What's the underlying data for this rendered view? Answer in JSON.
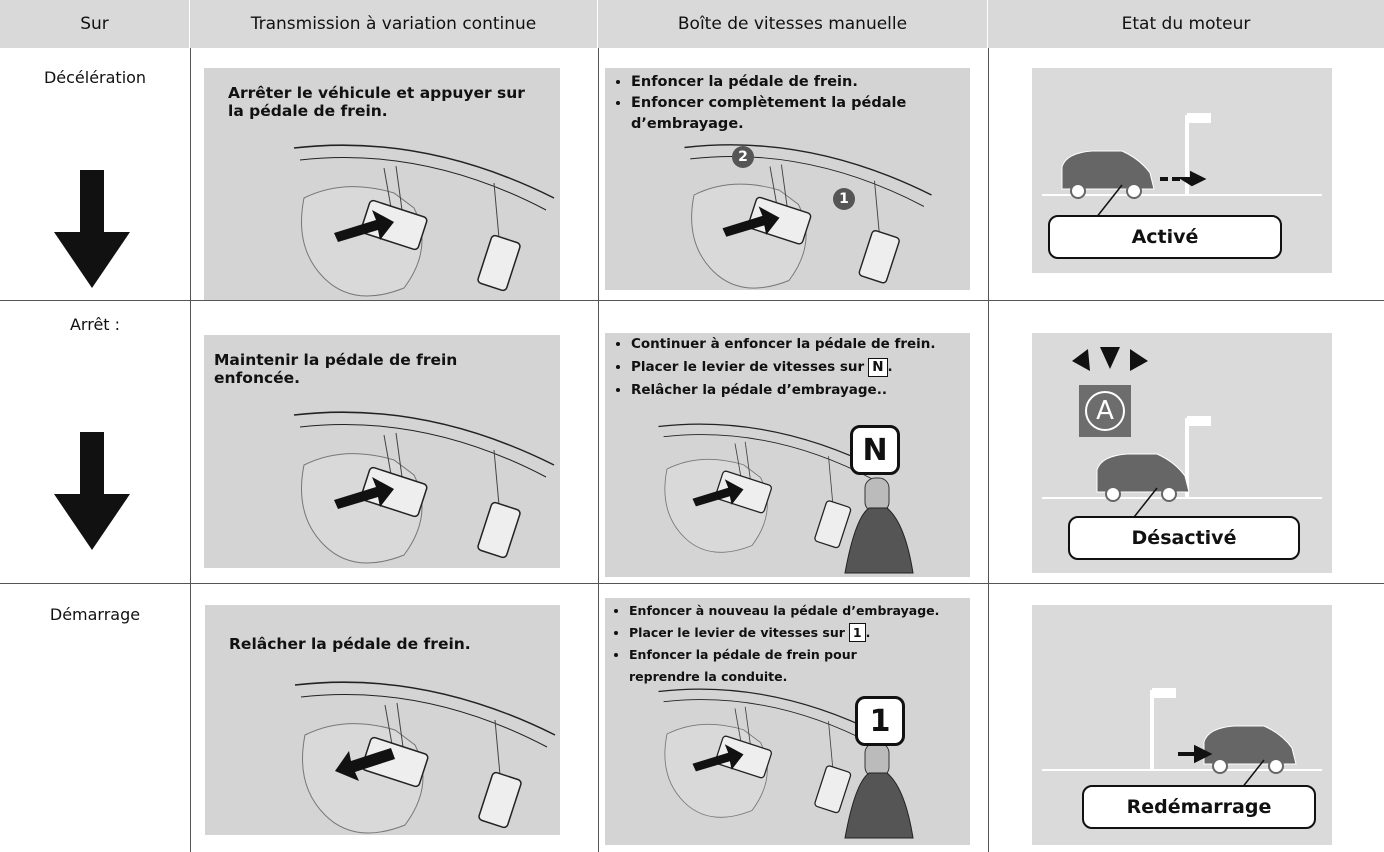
{
  "header": [
    "Sur",
    "Transmission à variation continue",
    "Boîte de vitesses manuelle",
    "Etat du moteur"
  ],
  "rows": [
    {
      "stage": "Décélération",
      "cvt": "Arrêter le véhicule et appuyer sur la pédale de frein.",
      "manual": [
        {
          "text": "Enfoncer la pédale de frein."
        },
        {
          "text": "Enfoncer complètement la pédale d’embrayage."
        }
      ],
      "markers": [
        "2",
        "1"
      ],
      "state": "Activé"
    },
    {
      "stage": "Arrêt :",
      "cvt": "Maintenir la pédale de frein enfoncée.",
      "manual": [
        {
          "text": "Continuer à enfoncer la pédale de frein."
        },
        {
          "text": "Placer le levier de vitesses sur",
          "key": "N",
          "end": "."
        },
        {
          "text": "Relâcher la pédale d’embrayage.."
        }
      ],
      "gear": "N",
      "indicator": "A",
      "state": "Désactivé"
    },
    {
      "stage": "Démarrage",
      "cvt": "Relâcher la pédale de frein.",
      "manual": [
        {
          "text": "Enfoncer à nouveau la pédale d’embrayage."
        },
        {
          "text": "Placer le levier de vitesses sur",
          "key": "1",
          "end": "."
        },
        {
          "text": "Enfoncer la pédale de frein pour reprendre la conduite."
        }
      ],
      "gear": "1",
      "state": "Redémarrage"
    }
  ]
}
